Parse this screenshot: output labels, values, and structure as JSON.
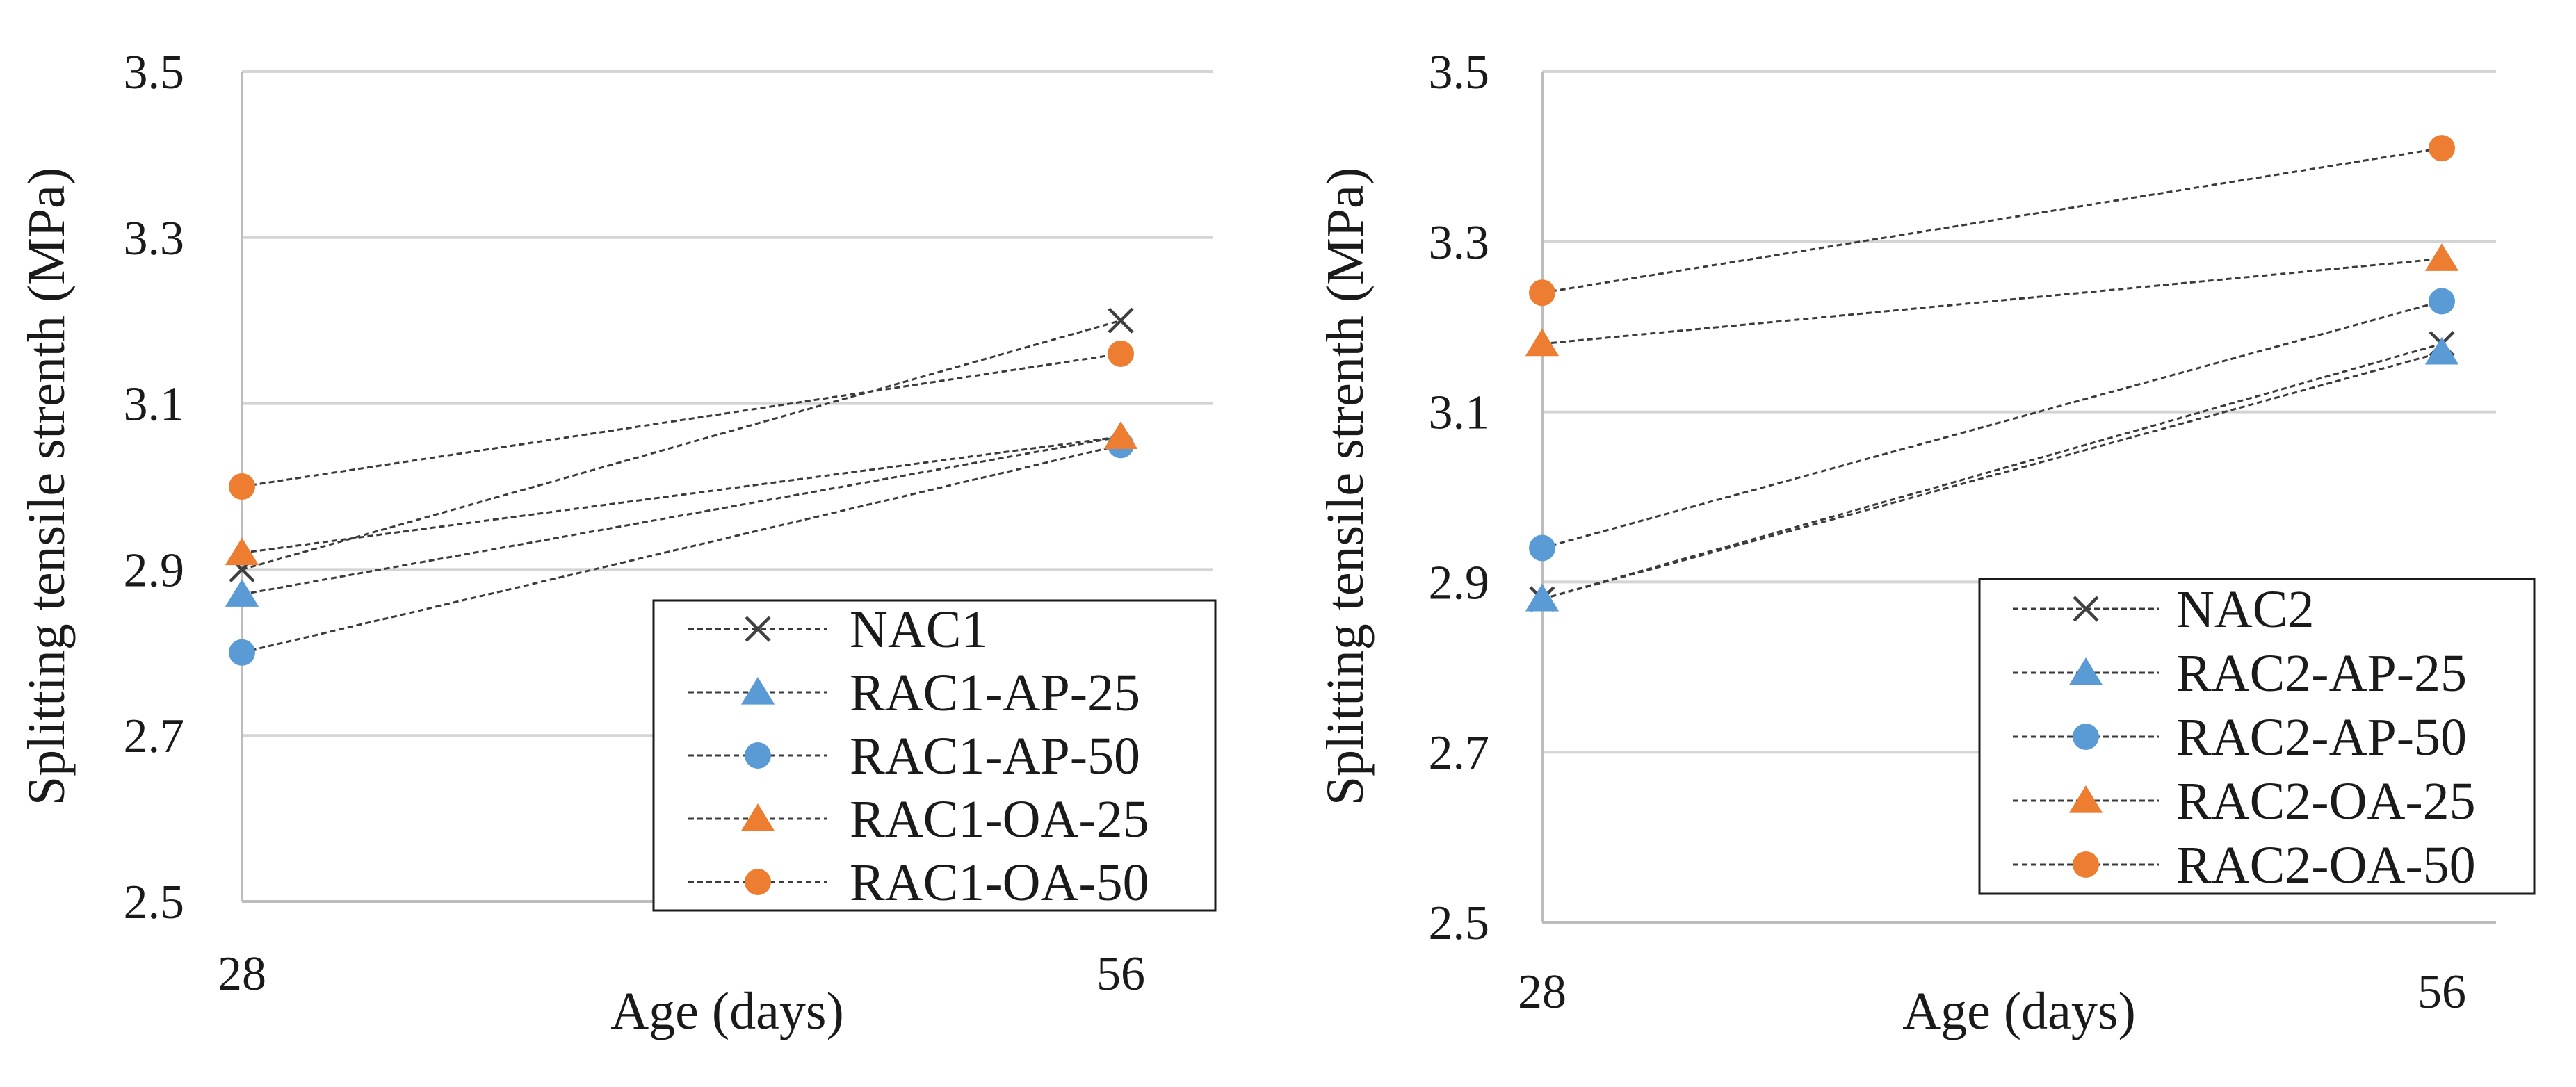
{
  "colors": {
    "blue": "#5b9bd5",
    "orange": "#ed7d31",
    "black": "#404040"
  },
  "chart_data": [
    {
      "type": "line",
      "title": "",
      "xlabel": "Age (days)",
      "ylabel": "Splitting tensile strenth (MPa)",
      "categories": [
        "28",
        "56"
      ],
      "ylim": [
        2.5,
        3.5
      ],
      "yticks": [
        "2.5",
        "2.7",
        "2.9",
        "3.1",
        "3.3",
        "3.5"
      ],
      "grid": true,
      "legend_position": "bottom-right",
      "series": [
        {
          "name": "NAC1",
          "marker": "cross",
          "color": "#404040",
          "values": [
            2.9,
            3.2
          ]
        },
        {
          "name": "RAC1-AP-25",
          "marker": "triangle",
          "color": "#5b9bd5",
          "values": [
            2.87,
            3.06
          ]
        },
        {
          "name": "RAC1-AP-50",
          "marker": "circle",
          "color": "#5b9bd5",
          "values": [
            2.8,
            3.05
          ]
        },
        {
          "name": "RAC1-OA-25",
          "marker": "triangle",
          "color": "#ed7d31",
          "values": [
            2.92,
            3.06
          ]
        },
        {
          "name": "RAC1-OA-50",
          "marker": "circle",
          "color": "#ed7d31",
          "values": [
            3.0,
            3.16
          ]
        }
      ]
    },
    {
      "type": "line",
      "title": "",
      "xlabel": "Age (days)",
      "ylabel": "Splitting tensile strenth (MPa)",
      "categories": [
        "28",
        "56"
      ],
      "ylim": [
        2.5,
        3.5
      ],
      "yticks": [
        "2.5",
        "2.7",
        "2.9",
        "3.1",
        "3.3",
        "3.5"
      ],
      "grid": true,
      "legend_position": "bottom-right",
      "series": [
        {
          "name": "NAC2",
          "marker": "cross",
          "color": "#404040",
          "values": [
            2.88,
            3.18
          ]
        },
        {
          "name": "RAC2-AP-25",
          "marker": "triangle",
          "color": "#5b9bd5",
          "values": [
            2.88,
            3.17
          ]
        },
        {
          "name": "RAC2-AP-50",
          "marker": "circle",
          "color": "#5b9bd5",
          "values": [
            2.94,
            3.23
          ]
        },
        {
          "name": "RAC2-OA-25",
          "marker": "triangle",
          "color": "#ed7d31",
          "values": [
            3.18,
            3.28
          ]
        },
        {
          "name": "RAC2-OA-50",
          "marker": "circle",
          "color": "#ed7d31",
          "values": [
            3.24,
            3.41
          ]
        }
      ]
    }
  ]
}
